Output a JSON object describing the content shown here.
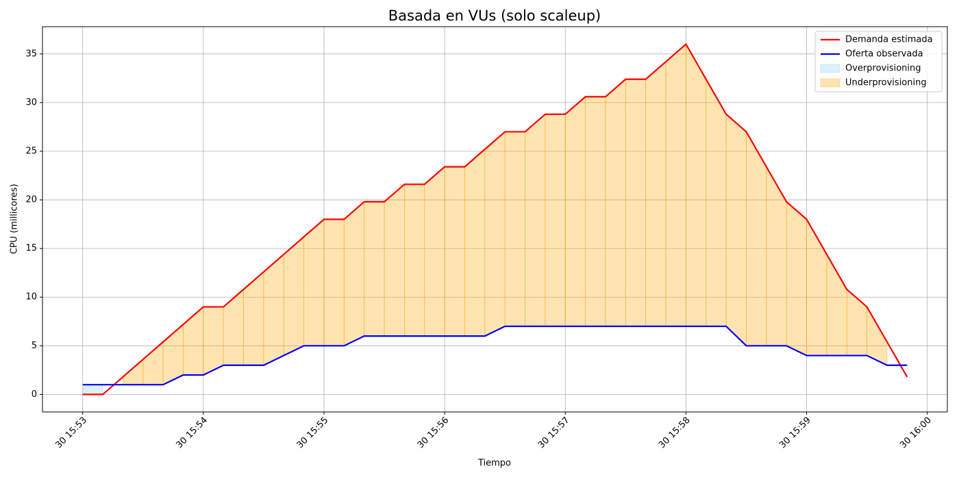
{
  "chart_data": {
    "type": "line",
    "title": "Basada en VUs (solo scaleup)",
    "x_label": "Tiempo",
    "y_label": "CPU (millicores)",
    "x": [
      "30 15:53:00",
      "30 15:53:10",
      "30 15:53:20",
      "30 15:53:30",
      "30 15:53:40",
      "30 15:53:50",
      "30 15:54:00",
      "30 15:54:10",
      "30 15:54:20",
      "30 15:54:30",
      "30 15:54:40",
      "30 15:54:50",
      "30 15:55:00",
      "30 15:55:10",
      "30 15:55:20",
      "30 15:55:30",
      "30 15:55:40",
      "30 15:55:50",
      "30 15:56:00",
      "30 15:56:10",
      "30 15:56:20",
      "30 15:56:30",
      "30 15:56:40",
      "30 15:56:50",
      "30 15:57:00",
      "30 15:57:10",
      "30 15:57:20",
      "30 15:57:30",
      "30 15:57:40",
      "30 15:57:50",
      "30 15:58:00",
      "30 15:58:10",
      "30 15:58:20",
      "30 15:58:30",
      "30 15:58:40",
      "30 15:58:50",
      "30 15:59:00",
      "30 15:59:10",
      "30 15:59:20",
      "30 15:59:30",
      "30 15:59:40",
      "30 15:59:50"
    ],
    "series": [
      {
        "name": "Demanda estimada",
        "color": "#ff0000",
        "values": [
          0,
          0,
          1.8,
          3.6,
          5.4,
          7.2,
          9,
          9,
          10.8,
          12.6,
          14.4,
          16.2,
          18,
          18,
          19.8,
          19.8,
          21.6,
          21.6,
          23.4,
          23.4,
          25.2,
          27,
          27,
          28.8,
          28.8,
          30.6,
          30.6,
          32.4,
          32.4,
          34.2,
          36,
          32.4,
          28.8,
          27,
          23.4,
          19.8,
          18,
          14.4,
          10.8,
          9,
          5.4,
          1.8
        ]
      },
      {
        "name": "Oferta observada",
        "color": "#0000ff",
        "values": [
          1,
          1,
          1,
          1,
          1,
          2,
          2,
          3,
          3,
          3,
          4,
          5,
          5,
          5,
          6,
          6,
          6,
          6,
          6,
          6,
          6,
          7,
          7,
          7,
          7,
          7,
          7,
          7,
          7,
          7,
          7,
          7,
          7,
          5,
          5,
          5,
          4,
          4,
          4,
          4,
          3,
          3
        ]
      }
    ],
    "fills": [
      {
        "name": "Overprovisioning",
        "color": "#87ceeb"
      },
      {
        "name": "Underprovisioning",
        "color": "#ffa500"
      }
    ],
    "xlim": [
      "30 15:52:40",
      "30 16:00:10"
    ],
    "xticks": [
      "30 15:53",
      "30 15:54",
      "30 15:55",
      "30 15:56",
      "30 15:57",
      "30 15:58",
      "30 15:59",
      "30 16:00"
    ],
    "ylim": [
      -1.8,
      37.8
    ],
    "yticks": [
      0,
      5,
      10,
      15,
      20,
      25,
      30,
      35
    ],
    "grid": true,
    "legend": "upper right"
  }
}
